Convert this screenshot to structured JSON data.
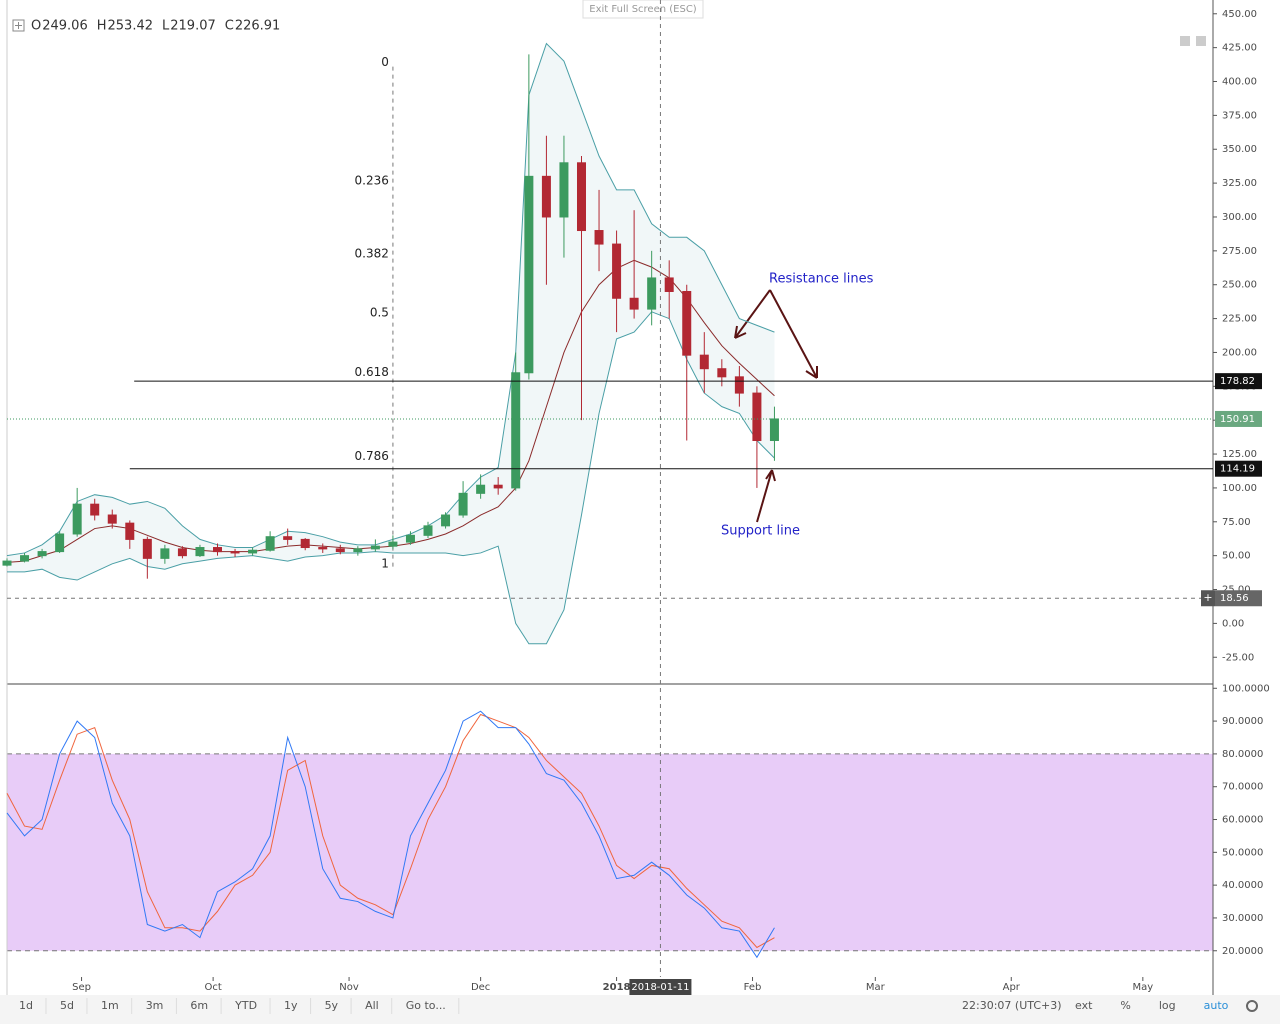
{
  "ui": {
    "exit_full_screen": "Exit Full Screen (ESC)",
    "toolbar": [
      "1d",
      "5d",
      "1m",
      "3m",
      "6m",
      "YTD",
      "1y",
      "5y",
      "All",
      "Go to..."
    ],
    "clock": "22:30:07 (UTC+3)",
    "right_buttons": [
      "ext",
      "%",
      "log",
      "auto"
    ]
  },
  "chart_data": {
    "type": "candlestick",
    "ohlc_legend": [
      {
        "key": "O",
        "value": 249.06
      },
      {
        "key": "H",
        "value": 253.42
      },
      {
        "key": "L",
        "value": 219.07
      },
      {
        "key": "C",
        "value": 226.91
      }
    ],
    "x": [
      "2017-08-15",
      "2017-08-19",
      "2017-08-23",
      "2017-08-27",
      "2017-08-31",
      "2017-09-04",
      "2017-09-08",
      "2017-09-12",
      "2017-09-16",
      "2017-09-20",
      "2017-09-24",
      "2017-09-28",
      "2017-10-02",
      "2017-10-06",
      "2017-10-10",
      "2017-10-14",
      "2017-10-18",
      "2017-10-22",
      "2017-10-26",
      "2017-10-30",
      "2017-11-03",
      "2017-11-07",
      "2017-11-11",
      "2017-11-15",
      "2017-11-19",
      "2017-11-23",
      "2017-11-27",
      "2017-12-01",
      "2017-12-05",
      "2017-12-09",
      "2017-12-12",
      "2017-12-16",
      "2017-12-20",
      "2017-12-24",
      "2017-12-28",
      "2018-01-01",
      "2018-01-05",
      "2018-01-09",
      "2018-01-13",
      "2018-01-17",
      "2018-01-21",
      "2018-01-25",
      "2018-01-29",
      "2018-02-02",
      "2018-02-06"
    ],
    "open": [
      43,
      46,
      50,
      53,
      66,
      88,
      80,
      74,
      62,
      48,
      55,
      50,
      56,
      53,
      52,
      54,
      64,
      62,
      56,
      55,
      53,
      55,
      57,
      60,
      65,
      72,
      80,
      96,
      102,
      100,
      185,
      330,
      300,
      340,
      290,
      280,
      240,
      232,
      255,
      245,
      198,
      188,
      182,
      170,
      135
    ],
    "high": [
      48,
      52,
      55,
      68,
      100,
      92,
      84,
      76,
      64,
      58,
      57,
      58,
      59,
      55,
      56,
      68,
      70,
      63,
      59,
      58,
      57,
      62,
      65,
      68,
      75,
      82,
      105,
      110,
      108,
      200,
      420,
      360,
      360,
      345,
      320,
      290,
      305,
      275,
      268,
      250,
      215,
      195,
      190,
      175,
      160
    ],
    "low": [
      42,
      45,
      48,
      52,
      64,
      76,
      70,
      55,
      33,
      44,
      48,
      49,
      50,
      49,
      50,
      53,
      58,
      54,
      52,
      51,
      50,
      53,
      55,
      58,
      63,
      70,
      78,
      92,
      95,
      98,
      180,
      250,
      270,
      150,
      260,
      215,
      225,
      220,
      225,
      135,
      170,
      175,
      160,
      100,
      120
    ],
    "close": [
      46,
      50,
      53,
      66,
      88,
      80,
      74,
      62,
      48,
      55,
      50,
      56,
      53,
      52,
      54,
      64,
      62,
      56,
      55,
      53,
      55,
      57,
      60,
      65,
      72,
      80,
      96,
      102,
      100,
      185,
      330,
      300,
      340,
      290,
      280,
      240,
      232,
      255,
      245,
      198,
      188,
      182,
      170,
      135,
      150.91
    ],
    "up_color": "#3c9a5f",
    "down_color": "#b22833",
    "bands": {
      "upper": [
        50,
        52,
        58,
        68,
        90,
        95,
        93,
        88,
        90,
        85,
        72,
        62,
        58,
        56,
        56,
        62,
        68,
        67,
        64,
        60,
        58,
        58,
        62,
        66,
        72,
        80,
        95,
        108,
        115,
        200,
        390,
        428,
        415,
        380,
        345,
        320,
        320,
        295,
        285,
        285,
        275,
        250,
        225,
        220,
        215
      ],
      "middle": [
        45,
        46,
        50,
        54,
        62,
        70,
        72,
        70,
        65,
        60,
        56,
        54,
        53,
        53,
        53,
        55,
        57,
        58,
        57,
        56,
        55,
        56,
        57,
        59,
        62,
        66,
        72,
        80,
        86,
        100,
        120,
        160,
        200,
        230,
        250,
        262,
        268,
        263,
        255,
        240,
        222,
        205,
        192,
        180,
        168
      ],
      "lower": [
        38,
        38,
        40,
        34,
        32,
        38,
        44,
        48,
        42,
        40,
        44,
        46,
        48,
        49,
        50,
        48,
        46,
        49,
        50,
        52,
        52,
        53,
        52,
        52,
        52,
        52,
        50,
        52,
        57,
        0,
        -15,
        -15,
        10,
        80,
        155,
        210,
        215,
        230,
        225,
        195,
        170,
        160,
        155,
        135,
        122
      ],
      "band_color": "#4a9fa6",
      "middle_color": "#8b2b2b"
    },
    "ylim": [
      -44,
      455
    ],
    "yticks": [
      {
        "value": 450,
        "label": "450.00"
      },
      {
        "value": 425,
        "label": "425.00"
      },
      {
        "value": 400,
        "label": "400.00"
      },
      {
        "value": 375,
        "label": "375.00"
      },
      {
        "value": 350,
        "label": "350.00"
      },
      {
        "value": 325,
        "label": "325.00"
      },
      {
        "value": 300,
        "label": "300.00"
      },
      {
        "value": 275,
        "label": "275.00"
      },
      {
        "value": 250,
        "label": "250.00"
      },
      {
        "value": 225,
        "label": "225.00"
      },
      {
        "value": 200,
        "label": "200.00"
      },
      {
        "value": 175,
        "label": "175.00"
      },
      {
        "value": 150,
        "label": "150.00"
      },
      {
        "value": 125,
        "label": "125.00"
      },
      {
        "value": 100,
        "label": "100.00"
      },
      {
        "value": 75,
        "label": "75.00"
      },
      {
        "value": 50,
        "label": "50.00"
      },
      {
        "value": 25,
        "label": "25.00"
      },
      {
        "value": 0,
        "label": "0.00"
      },
      {
        "value": -25,
        "label": "-25.00"
      }
    ],
    "xlim": [
      "2017-08-15",
      "2018-05-17"
    ],
    "xticks": [
      {
        "value": "2017-09-01",
        "label": "Sep"
      },
      {
        "value": "2017-10-01",
        "label": "Oct"
      },
      {
        "value": "2017-11-01",
        "label": "Nov"
      },
      {
        "value": "2017-12-01",
        "label": "Dec"
      },
      {
        "value": "2018-01-01",
        "label": "2018"
      },
      {
        "value": "2018-02-01",
        "label": "Feb"
      },
      {
        "value": "2018-03-01",
        "label": "Mar"
      },
      {
        "value": "2018-04-01",
        "label": "Apr"
      },
      {
        "value": "2018-05-01",
        "label": "May"
      }
    ],
    "levels": [
      {
        "value": 178.82,
        "start": "2017-09-13"
      },
      {
        "value": 114.19,
        "start": "2017-09-12"
      }
    ],
    "last_price": 150.91,
    "fib": {
      "date": "2017-11-11",
      "high": 411,
      "low": 41,
      "levels": [
        0,
        0.236,
        0.382,
        0.5,
        0.618,
        0.786,
        1
      ]
    },
    "crosshair": {
      "x": "2018-01-11",
      "y": 18.56
    },
    "annotations": [
      "Resistance lines",
      "Support line"
    ],
    "stochastic": {
      "k": [
        62,
        55,
        60,
        80,
        90,
        85,
        65,
        55,
        28,
        26,
        28,
        24,
        38,
        41,
        45,
        55,
        85,
        70,
        45,
        36,
        35,
        32,
        30,
        55,
        65,
        75,
        90,
        93,
        88,
        88,
        83,
        74,
        72,
        65,
        55,
        42,
        43,
        47,
        43,
        37,
        33,
        27,
        26,
        18,
        27
      ],
      "d": [
        68,
        58,
        57,
        72,
        86,
        88,
        72,
        60,
        38,
        27,
        27,
        26,
        32,
        40,
        43,
        50,
        75,
        78,
        55,
        40,
        36,
        34,
        31,
        45,
        60,
        70,
        84,
        92,
        90,
        88,
        85,
        78,
        73,
        68,
        58,
        46,
        42,
        46,
        45,
        39,
        34,
        29,
        27,
        21,
        24
      ],
      "k_color": "#3179f5",
      "d_color": "#f0653d",
      "band": [
        20,
        80
      ],
      "band_color": "#e8ccf8",
      "ylim": [
        12,
        101
      ],
      "yticks": [
        {
          "value": 100,
          "label": "100.0000"
        },
        {
          "value": 90,
          "label": "90.0000"
        },
        {
          "value": 80,
          "label": "80.0000"
        },
        {
          "value": 70,
          "label": "70.0000"
        },
        {
          "value": 60,
          "label": "60.0000"
        },
        {
          "value": 50,
          "label": "50.0000"
        },
        {
          "value": 40,
          "label": "40.0000"
        },
        {
          "value": 30,
          "label": "30.0000"
        },
        {
          "value": 20,
          "label": "20.0000"
        }
      ]
    }
  }
}
